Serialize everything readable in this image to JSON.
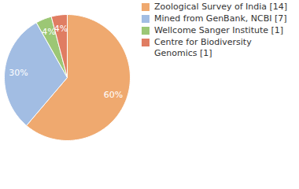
{
  "chart_data": {
    "type": "pie",
    "categories": [
      "Zoological Survey of India [14]",
      "Mined from GenBank, NCBI [7]",
      "Wellcome Sanger Institute [1]",
      "Centre for Biodiversity Genomics [1]"
    ],
    "values": [
      60,
      30,
      4,
      4
    ],
    "value_labels": [
      "60%",
      "30%",
      "4%",
      "4%"
    ],
    "colors": [
      "#efa96f",
      "#a2bde3",
      "#9cc775",
      "#e07d62"
    ],
    "data_labels": true,
    "legend": "top-right"
  }
}
